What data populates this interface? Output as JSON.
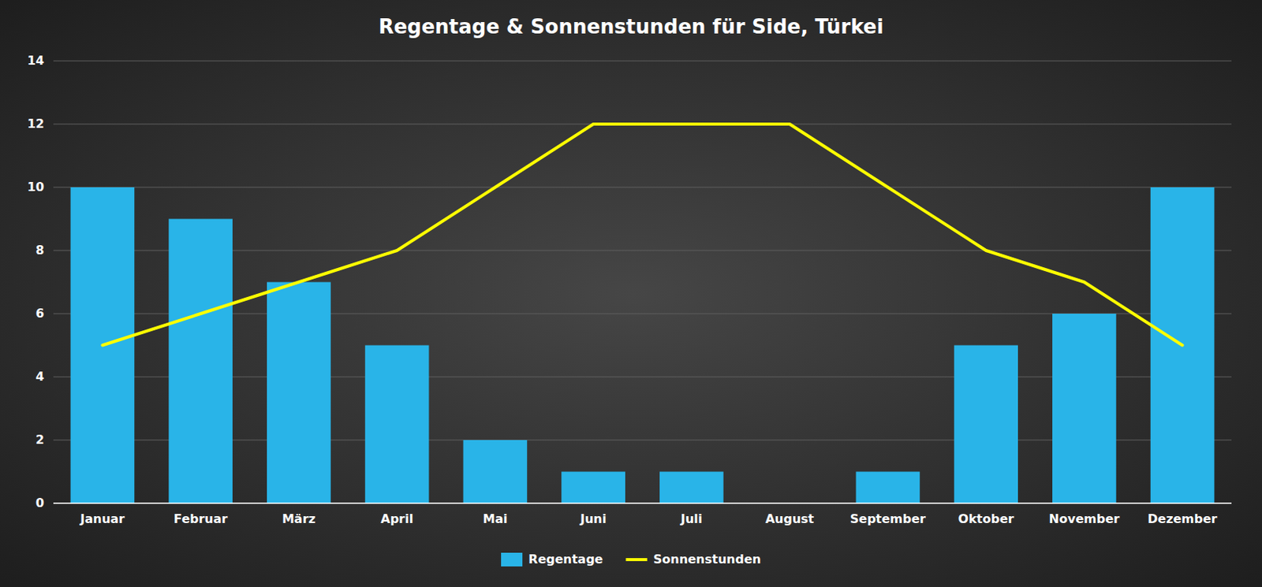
{
  "chart_data": {
    "type": "bar",
    "title": "Regentage & Sonnenstunden für Side, Türkei",
    "categories": [
      "Januar",
      "Februar",
      "März",
      "April",
      "Mai",
      "Juni",
      "Juli",
      "August",
      "September",
      "Oktober",
      "November",
      "Dezember"
    ],
    "series": [
      {
        "name": "Regentage",
        "type": "bar",
        "color": "#29b4e8",
        "values": [
          10,
          9,
          7,
          5,
          2,
          1,
          1,
          0,
          1,
          5,
          6,
          10
        ]
      },
      {
        "name": "Sonnenstunden",
        "type": "line",
        "color": "#ffff00",
        "values": [
          5,
          6,
          7,
          8,
          10,
          12,
          12,
          12,
          10,
          8,
          7,
          5
        ]
      }
    ],
    "ylim": [
      0,
      14
    ],
    "yticks": [
      0,
      2,
      4,
      6,
      8,
      10,
      12,
      14
    ],
    "grid": true,
    "legend": "bottom"
  }
}
